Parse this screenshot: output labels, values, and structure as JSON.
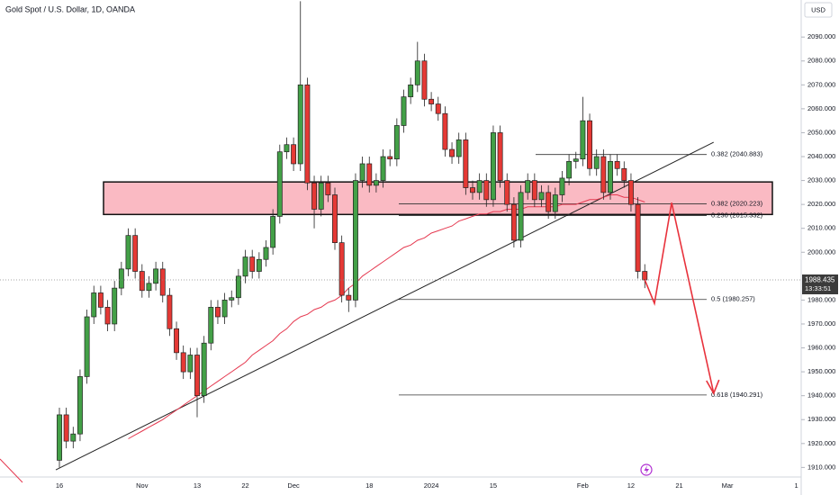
{
  "chart_data": {
    "type": "candlestick",
    "title": "Gold Spot / U.S. Dollar, 1D, OANDA",
    "currency": "USD",
    "categories": [
      "16",
      null,
      null,
      null,
      null,
      null,
      null,
      null,
      null,
      null,
      null,
      null,
      "Nov",
      null,
      null,
      null,
      null,
      null,
      null,
      null,
      "13",
      null,
      null,
      null,
      null,
      null,
      null,
      "22",
      null,
      null,
      null,
      null,
      null,
      null,
      "Dec",
      null,
      null,
      null,
      null,
      null,
      null,
      null,
      null,
      null,
      null,
      "18",
      null,
      null,
      null,
      null,
      null,
      null,
      null,
      null,
      "2024",
      null,
      null,
      null,
      null,
      null,
      null,
      null,
      null,
      "15",
      null,
      null,
      null,
      null,
      null,
      null,
      null,
      null,
      null,
      null,
      null,
      null,
      "Feb",
      null,
      null,
      null,
      null,
      null,
      null,
      "12",
      null,
      null,
      null,
      null,
      null,
      null,
      "21",
      null,
      null,
      null,
      null,
      null,
      null,
      "Mar",
      null,
      null,
      null,
      null,
      null,
      null,
      null,
      null,
      null,
      "1"
    ],
    "open": [
      1913,
      1932,
      1921,
      1924,
      1948,
      1973,
      1983,
      1977,
      1970,
      1985,
      1993,
      2007,
      1992,
      1984,
      1987,
      1993,
      1982,
      1968,
      1958,
      1950,
      1957,
      1940,
      1962,
      1977,
      1973,
      1980,
      1981,
      1990,
      1998,
      1992,
      1997,
      2002,
      2015,
      2042,
      2045,
      2037,
      2070,
      2029,
      2018,
      2029,
      2024,
      2004,
      1982,
      1980,
      2030,
      2037,
      2028,
      2030,
      2040,
      2039,
      2053,
      2065,
      2070,
      2080,
      2064,
      2062,
      2058,
      2043,
      2040,
      2047,
      2027,
      2025,
      2030,
      2022,
      2050,
      2030,
      2020,
      2005,
      2025,
      2030,
      2022,
      2025,
      2017,
      2024,
      2031,
      2038,
      2039,
      2055,
      2035,
      2040,
      2025,
      2038,
      2035,
      2030,
      2020,
      1992,
      null,
      null,
      null,
      null,
      null,
      null,
      null,
      null,
      null,
      null,
      null,
      null,
      null,
      null,
      null,
      null,
      null,
      null,
      null,
      null,
      null,
      null
    ],
    "high": [
      1935,
      1935,
      1927,
      1951,
      1976,
      1986,
      1986,
      1980,
      1988,
      1996,
      2010,
      2010,
      1995,
      1990,
      1996,
      1996,
      1985,
      1971,
      1961,
      1960,
      1960,
      1965,
      1980,
      1980,
      1983,
      1984,
      1993,
      2001,
      2001,
      2000,
      2005,
      2018,
      2045,
      2048,
      2048,
      2105,
      2073,
      2032,
      2032,
      2032,
      2027,
      2007,
      1985,
      2033,
      2040,
      2040,
      2033,
      2043,
      2043,
      2056,
      2068,
      2073,
      2088,
      2083,
      2067,
      2065,
      2061,
      2046,
      2050,
      2050,
      2030,
      2033,
      2033,
      2053,
      2053,
      2033,
      2023,
      2028,
      2033,
      2033,
      2028,
      2028,
      2027,
      2034,
      2041,
      2042,
      2065,
      2058,
      2043,
      2043,
      2041,
      2041,
      2038,
      2033,
      2023,
      1995,
      null,
      null,
      null,
      null,
      null,
      null,
      null,
      null,
      null,
      null,
      null,
      null,
      null,
      null,
      null,
      null,
      null,
      null,
      null,
      null,
      null,
      null
    ],
    "low": [
      1910,
      1918,
      1918,
      1921,
      1945,
      1970,
      1974,
      1967,
      1967,
      1982,
      1990,
      1989,
      1981,
      1981,
      1984,
      1979,
      1965,
      1955,
      1947,
      1947,
      1931,
      1937,
      1959,
      1970,
      1970,
      1977,
      1978,
      1987,
      1989,
      1989,
      1994,
      1999,
      2012,
      2039,
      2034,
      2034,
      2026,
      2010,
      2015,
      2021,
      2001,
      1979,
      1975,
      1977,
      2027,
      2025,
      2025,
      2027,
      2036,
      2036,
      2050,
      2062,
      2067,
      2061,
      2059,
      2055,
      2040,
      2037,
      2037,
      2024,
      2022,
      2022,
      2019,
      2019,
      2027,
      2017,
      2002,
      2002,
      2022,
      2019,
      2019,
      2014,
      2014,
      2021,
      2028,
      2035,
      2036,
      2032,
      2032,
      2022,
      2022,
      2032,
      2027,
      2017,
      1989,
      1985,
      null,
      null,
      null,
      null,
      null,
      null,
      null,
      null,
      null,
      null,
      null,
      null,
      null,
      null,
      null,
      null,
      null,
      null,
      null,
      null,
      null,
      null
    ],
    "close": [
      1932,
      1921,
      1924,
      1948,
      1973,
      1983,
      1977,
      1970,
      1985,
      1993,
      2007,
      1992,
      1984,
      1987,
      1993,
      1982,
      1968,
      1958,
      1950,
      1957,
      1940,
      1962,
      1977,
      1973,
      1980,
      1981,
      1990,
      1998,
      1992,
      1997,
      2002,
      2015,
      2042,
      2045,
      2037,
      2070,
      2029,
      2018,
      2029,
      2024,
      2004,
      1982,
      1980,
      2030,
      2037,
      2028,
      2030,
      2040,
      2039,
      2053,
      2065,
      2070,
      2080,
      2064,
      2062,
      2058,
      2043,
      2040,
      2047,
      2027,
      2025,
      2030,
      2022,
      2050,
      2030,
      2020,
      2005,
      2025,
      2030,
      2022,
      2025,
      2017,
      2024,
      2031,
      2038,
      2039,
      2055,
      2035,
      2040,
      2025,
      2038,
      2035,
      2030,
      2020,
      1992,
      1988.435,
      null,
      null,
      null,
      null,
      null,
      null,
      null,
      null,
      null,
      null,
      null,
      null,
      null,
      null,
      null,
      null,
      null,
      null,
      null,
      null,
      null,
      null
    ],
    "ma": [
      null,
      null,
      null,
      null,
      null,
      null,
      null,
      null,
      null,
      null,
      1922,
      1923.6,
      1925.2,
      1926.8,
      1928.4,
      1930,
      1932,
      1934,
      1936,
      1938,
      1940,
      1942,
      1944,
      1946,
      1948,
      1950,
      1952,
      1954,
      1957,
      1959,
      1961,
      1963,
      1966,
      1968,
      1971,
      1973,
      1974,
      1976,
      1977,
      1979,
      1980,
      1982,
      1985,
      1987,
      1990,
      1992,
      1994,
      1996,
      1998,
      2000,
      2002,
      2003,
      2005,
      2006,
      2008,
      2009,
      2010,
      2011,
      2013,
      2014,
      2015,
      2016,
      2016,
      2017,
      2017,
      2018,
      2018,
      2018,
      2019,
      2019,
      2019,
      2019,
      2019,
      2020,
      2020,
      2020,
      2021,
      2022,
      2022,
      2023,
      2024,
      2024,
      2023,
      2023,
      2022,
      2021,
      null,
      null,
      null,
      null,
      null,
      null,
      null,
      null,
      null,
      null,
      null,
      null,
      null,
      null,
      null,
      null,
      null,
      null,
      null,
      null,
      null,
      null
    ],
    "up_color": "#43a047",
    "down_color": "#e53935",
    "ma_color": "#e53950",
    "ylim": [
      1906,
      2105.5
    ],
    "yticks": [
      {
        "value": 1910,
        "label": "1910.000"
      },
      {
        "value": 1920,
        "label": "1920.000"
      },
      {
        "value": 1930,
        "label": "1930.000"
      },
      {
        "value": 1940,
        "label": "1940.000"
      },
      {
        "value": 1950,
        "label": "1950.000"
      },
      {
        "value": 1960,
        "label": "1960.000"
      },
      {
        "value": 1970,
        "label": "1970.000"
      },
      {
        "value": 1980,
        "label": "1980.000"
      },
      {
        "value": 2000,
        "label": "2000.000"
      },
      {
        "value": 2010,
        "label": "2010.000"
      },
      {
        "value": 2020,
        "label": "2020.000"
      },
      {
        "value": 2030,
        "label": "2030.000"
      },
      {
        "value": 2040,
        "label": "2040.000"
      },
      {
        "value": 2050,
        "label": "2050.000"
      },
      {
        "value": 2060,
        "label": "2060.000"
      },
      {
        "value": 2070,
        "label": "2070.000"
      },
      {
        "value": 2080,
        "label": "2080.000"
      },
      {
        "value": 2090,
        "label": "2090.000"
      }
    ],
    "last_price": 1988.435,
    "countdown": "13:33:51",
    "zone": {
      "low": 2015.8,
      "high": 2029.4
    },
    "trendline": [
      {
        "x": 0,
        "y": 1909
      },
      {
        "x": 95,
        "y": 2046
      }
    ],
    "projection": [
      {
        "x": 85,
        "y": 1988.4
      },
      {
        "x": 86.4,
        "y": 1978.6
      },
      {
        "x": 88.9,
        "y": 2020.7
      },
      {
        "x": 95,
        "y": 1941
      }
    ],
    "fib_levels": [
      {
        "value": 2040.883,
        "label": "0.382 (2040.883)"
      },
      {
        "value": 2020.223,
        "label": "0.382 (2020.223)"
      },
      {
        "value": 2015.332,
        "label": "0.236 (2015.332)"
      },
      {
        "value": 1980.257,
        "label": "0.5 (1980.257)"
      },
      {
        "value": 1940.291,
        "label": "0.618 (1940.291)"
      }
    ]
  }
}
